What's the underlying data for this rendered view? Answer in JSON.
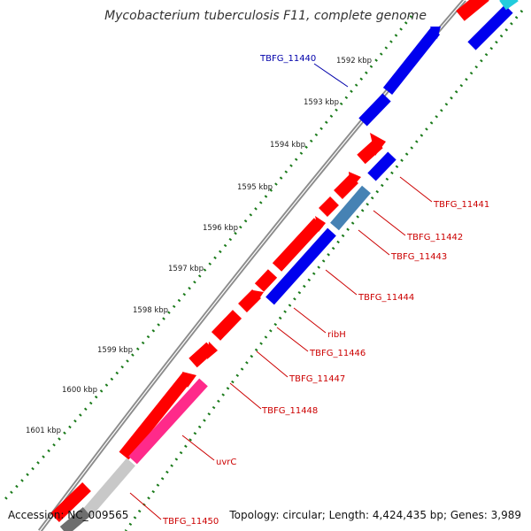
{
  "title": "Mycobacterium tuberculosis F11, complete genome",
  "footer": {
    "accession": "Accession: NC_009565",
    "topology": "Topology: circular; Length: 4,424,435 bp; Genes: 3,989"
  },
  "colors": {
    "backbone": "#8c8c8c",
    "tick": "#1a7a1a",
    "outer_strand_gene": "#ff0000",
    "inner_strand_gene": "#0000ee",
    "pseudo_gene": "#4682b4",
    "uvrC_gene": "#ff2a8a",
    "label_blue": "#0000aa",
    "label_red": "#cc0000"
  },
  "kbp_ticks": [
    "1592 kbp",
    "1593 kbp",
    "1594 kbp",
    "1595 kbp",
    "1596 kbp",
    "1597 kbp",
    "1598 kbp",
    "1599 kbp",
    "1600 kbp",
    "1601 kbp"
  ],
  "gene_labels": [
    {
      "name": "TBFG_11440",
      "color": "#0000aa"
    },
    {
      "name": "TBFG_11441",
      "color": "#cc0000"
    },
    {
      "name": "TBFG_11442",
      "color": "#cc0000"
    },
    {
      "name": "TBFG_11443",
      "color": "#cc0000"
    },
    {
      "name": "TBFG_11444",
      "color": "#cc0000"
    },
    {
      "name": "ribH",
      "color": "#cc0000"
    },
    {
      "name": "TBFG_11446",
      "color": "#cc0000"
    },
    {
      "name": "TBFG_11447",
      "color": "#cc0000"
    },
    {
      "name": "TBFG_11448",
      "color": "#cc0000"
    },
    {
      "name": "uvrC",
      "color": "#cc0000"
    },
    {
      "name": "TBFG_11450",
      "color": "#cc0000"
    }
  ]
}
